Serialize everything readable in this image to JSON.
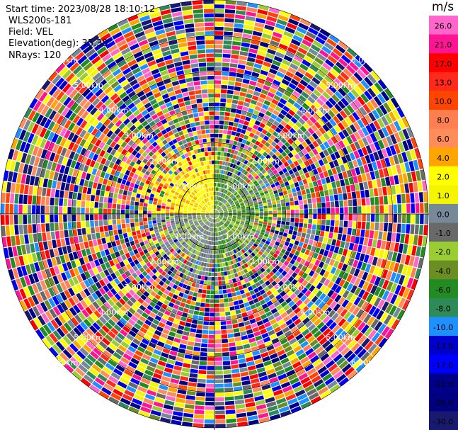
{
  "info": {
    "start_time": "Start time: 2023/08/28 18:10:12",
    "device": "WLS200s-181",
    "field": "Field: VEL",
    "elevation": "Elevation(deg): 35.30",
    "nrays": "NRays: 120"
  },
  "colorbar": {
    "unit": "m/s",
    "ticks": [
      "26.0",
      "21.0",
      "17.0",
      "13.0",
      "10.0",
      "8.0",
      "6.0",
      "4.0",
      "2.0",
      "1.0",
      "0.0",
      "-1.0",
      "-2.0",
      "-4.0",
      "-6.0",
      "-8.0",
      "-10.0",
      "-13.0",
      "-17.0",
      "-21.0",
      "-26.0",
      "-30.0"
    ],
    "colors": [
      "#ff66cc",
      "#ff1493",
      "#ff0000",
      "#ff2a1a",
      "#ff4500",
      "#ff7f50",
      "#ff8c5a",
      "#ffa500",
      "#ffff00",
      "#f5f500",
      "#778899",
      "#696969",
      "#9acd32",
      "#6b8e23",
      "#228b22",
      "#2e8b57",
      "#1e90ff",
      "#0000cd",
      "#0000ff",
      "#00008b",
      "#000080",
      "#191970"
    ]
  },
  "rings": {
    "labels": [
      "1.00km",
      "2.00km",
      "3.00km",
      "4.00km",
      "5.00km",
      "6.00km"
    ]
  }
}
